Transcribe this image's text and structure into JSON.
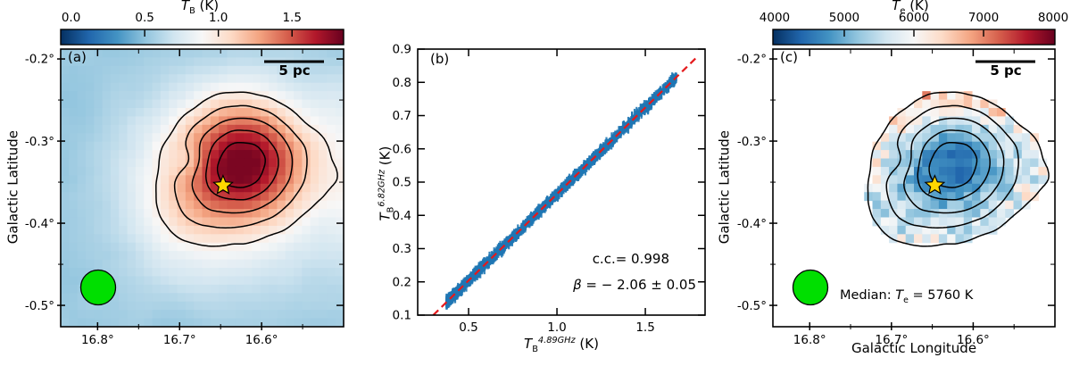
{
  "colormap": {
    "name": "RdBu_r",
    "stops": [
      "#053061",
      "#2166ac",
      "#4393c3",
      "#92c5de",
      "#d1e5f0",
      "#f7f7f7",
      "#fddbc7",
      "#f4a582",
      "#d6604d",
      "#b2182b",
      "#67001f"
    ]
  },
  "chart_data": [
    {
      "id": "a",
      "type": "heatmap",
      "panel_label": "(a)",
      "xlabel": "",
      "ylabel": "Galactic Latitude",
      "extent": {
        "l": [
          16.845,
          16.5
        ],
        "b": [
          -0.188,
          -0.526
        ]
      },
      "xticks": {
        "values": [
          16.8,
          16.7,
          16.6
        ],
        "labels": [
          "16.8°",
          "16.7°",
          "16.6°"
        ],
        "minor": [
          16.75,
          16.65,
          16.55
        ]
      },
      "yticks": {
        "values": [
          -0.2,
          -0.3,
          -0.4,
          -0.5
        ],
        "labels": [
          "-0.2°",
          "-0.3°",
          "-0.4°",
          "-0.5°"
        ],
        "minor": [
          -0.25,
          -0.35,
          -0.45
        ]
      },
      "colorbar": {
        "title": "*T*_{B} (K)",
        "vmin": -0.07,
        "vmax": 1.85,
        "ticks": [
          0,
          0.5,
          1,
          1.5
        ],
        "tick_labels": [
          "0.0",
          "0.5",
          "1.0",
          "1.5"
        ],
        "inner_ticks": [
          0.5,
          1,
          1.5
        ]
      },
      "contour_levels": [
        0.95,
        1.15,
        1.35,
        1.55,
        1.72
      ],
      "star": {
        "l": 16.647,
        "b": -0.354,
        "color": "#ffd700"
      },
      "beam": {
        "color": "#00df00"
      },
      "scale_bar": {
        "label": "5 pc"
      },
      "grid": {
        "nx": 34,
        "ny": 33
      },
      "field_model": {
        "background": 0.52,
        "noise_amp": 0.055,
        "clamp": [
          0.35,
          1.8
        ],
        "gaussians": [
          [
            1.0,
            0.66,
            0.4,
            0.16,
            0.155
          ],
          [
            0.4,
            0.55,
            0.5,
            0.22,
            0.24
          ],
          [
            0.12,
            0.42,
            0.6,
            0.13,
            0.12
          ],
          [
            -0.18,
            0.455,
            0.405,
            0.042,
            0.042
          ],
          [
            0.3,
            1.07,
            0.48,
            0.12,
            0.28
          ]
        ]
      }
    },
    {
      "id": "b",
      "type": "scatter",
      "panel_label": "(b)",
      "xlabel": "*T*_{B}^{*4.89GHz*} (K)",
      "ylabel": "*T*_{B}^{*6.82GHz*} (K)",
      "xlim": [
        0.212,
        1.838
      ],
      "ylim": [
        0.1,
        0.9
      ],
      "xticks": {
        "values": [
          0.5,
          1.0,
          1.5
        ],
        "labels": [
          "0.5",
          "1.0",
          "1.5"
        ]
      },
      "yticks": {
        "values": [
          0.1,
          0.2,
          0.3,
          0.4,
          0.5,
          0.6,
          0.7,
          0.8,
          0.9
        ],
        "labels": [
          "0.1",
          "0.2",
          "0.3",
          "0.4",
          "0.5",
          "0.6",
          "0.7",
          "0.8",
          "0.9"
        ]
      },
      "annotations": {
        "cc": "c.c.= 0.998",
        "beta": "*β* = − 2.06 ± 0.05"
      },
      "stats": {
        "correlation": 0.998,
        "beta": -2.06,
        "beta_err": 0.05
      },
      "fit_line": {
        "x": [
          0.3,
          1.79
        ],
        "y": [
          0.1,
          0.875
        ],
        "color": "#e41a1c",
        "style": "dashed"
      },
      "scatter": {
        "color": "#1f77b4",
        "n": 2600,
        "x_range": [
          0.375,
          1.675
        ],
        "slope": 0.52,
        "intercept": -0.056,
        "sigma": 0.0065
      }
    },
    {
      "id": "c",
      "type": "heatmap",
      "panel_label": "(c)",
      "xlabel": "Galactic Longitude",
      "ylabel": "Galactic Latitude",
      "extent": {
        "l": [
          16.845,
          16.5
        ],
        "b": [
          -0.188,
          -0.526
        ]
      },
      "xticks": {
        "values": [
          16.8,
          16.7,
          16.6
        ],
        "labels": [
          "16.8°",
          "16.7°",
          "16.6°"
        ],
        "minor": [
          16.75,
          16.65,
          16.55
        ]
      },
      "yticks": {
        "values": [
          -0.2,
          -0.3,
          -0.4,
          -0.5
        ],
        "labels": [
          "-0.2°",
          "-0.3°",
          "-0.4°",
          "-0.5°"
        ],
        "minor": [
          -0.25,
          -0.35,
          -0.45
        ]
      },
      "colorbar": {
        "title": "*T*_{e} (K)",
        "vmin": 3975,
        "vmax": 8025,
        "ticks": [
          4000,
          5000,
          6000,
          7000,
          8000
        ],
        "tick_labels": [
          "4000",
          "5000",
          "6000",
          "7000",
          "8000"
        ],
        "inner_ticks": [
          5000,
          6000,
          7000
        ]
      },
      "contour_levels": [
        0.95,
        1.15,
        1.35,
        1.55,
        1.72
      ],
      "star": {
        "l": 16.647,
        "b": -0.354,
        "color": "#ffd700"
      },
      "beam": {
        "color": "#00df00"
      },
      "scale_bar": {
        "label": "5 pc"
      },
      "annotation": "Median: *T*_{e} = 5760 K",
      "median_te_k": 5760,
      "grid": {
        "nx": 34,
        "ny": 33
      },
      "mask_level": 0.95,
      "te_model": {
        "base": 6500,
        "depth": 1950,
        "noise_base": 300,
        "noise_edge": 1150,
        "edge_pow": 1.6,
        "warm_band": [
          700,
          0.6,
          0.18,
          0.28,
          0.09
        ],
        "clamp": [
          4100,
          7900
        ]
      },
      "field_model": {
        "background": 0.52,
        "noise_amp": 0.055,
        "clamp": [
          0.35,
          1.8
        ],
        "gaussians": [
          [
            1.0,
            0.66,
            0.4,
            0.16,
            0.155
          ],
          [
            0.4,
            0.55,
            0.5,
            0.22,
            0.24
          ],
          [
            0.12,
            0.42,
            0.6,
            0.13,
            0.12
          ],
          [
            -0.18,
            0.455,
            0.405,
            0.042,
            0.042
          ],
          [
            0.3,
            1.07,
            0.48,
            0.12,
            0.28
          ]
        ]
      }
    }
  ]
}
